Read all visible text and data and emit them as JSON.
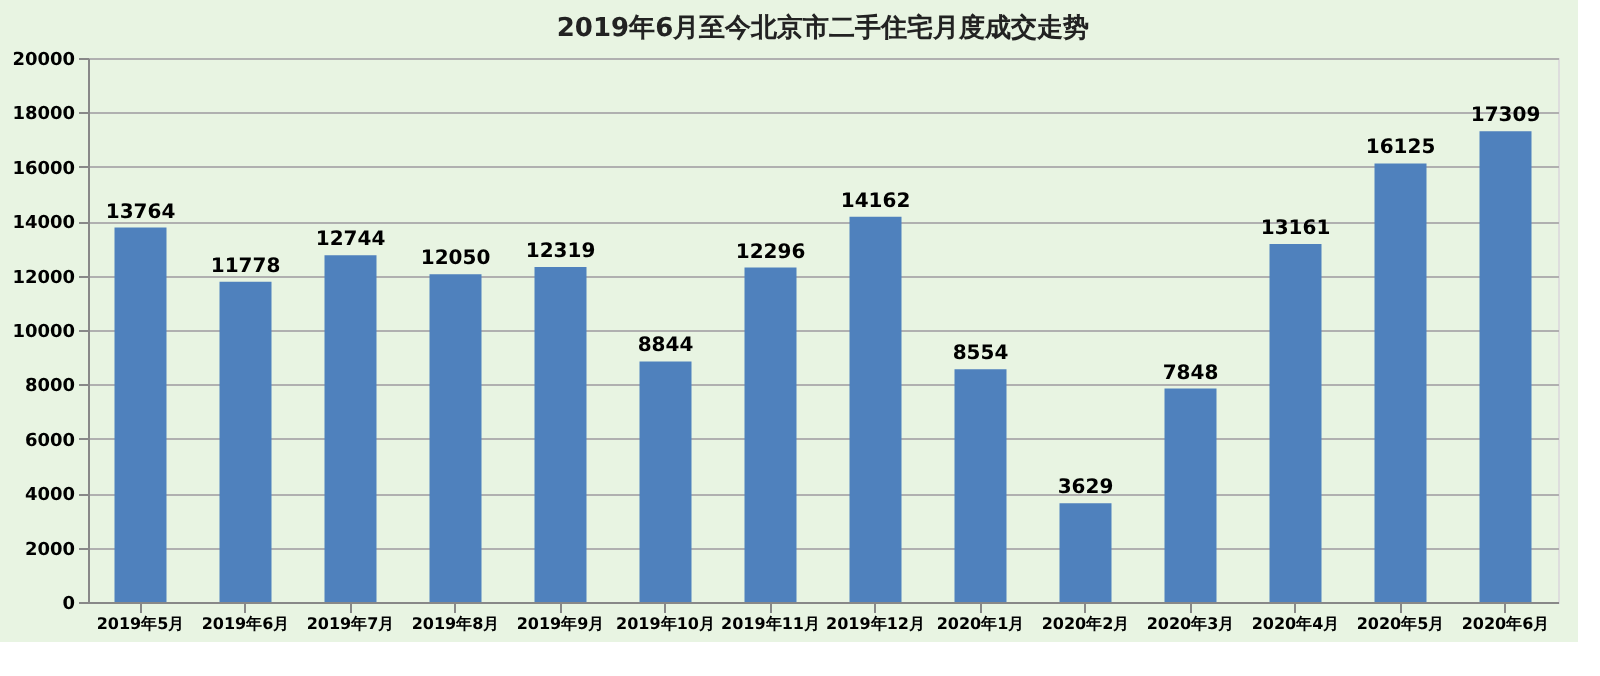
{
  "chart_data": {
    "type": "bar",
    "title": "2019年6月至今北京市二手住宅月度成交走势",
    "categories": [
      "2019年5月",
      "2019年6月",
      "2019年7月",
      "2019年8月",
      "2019年9月",
      "2019年10月",
      "2019年11月",
      "2019年12月",
      "2020年1月",
      "2020年2月",
      "2020年3月",
      "2020年4月",
      "2020年5月",
      "2020年6月"
    ],
    "values": [
      13764,
      11778,
      12744,
      12050,
      12319,
      8844,
      12296,
      14162,
      8554,
      3629,
      7848,
      13161,
      16125,
      17309
    ],
    "color": "#4f81bd",
    "ylim": [
      0,
      20000
    ],
    "yticks": [
      0,
      2000,
      4000,
      6000,
      8000,
      10000,
      12000,
      14000,
      16000,
      18000,
      20000
    ],
    "grid": "y",
    "data_labels": true
  }
}
